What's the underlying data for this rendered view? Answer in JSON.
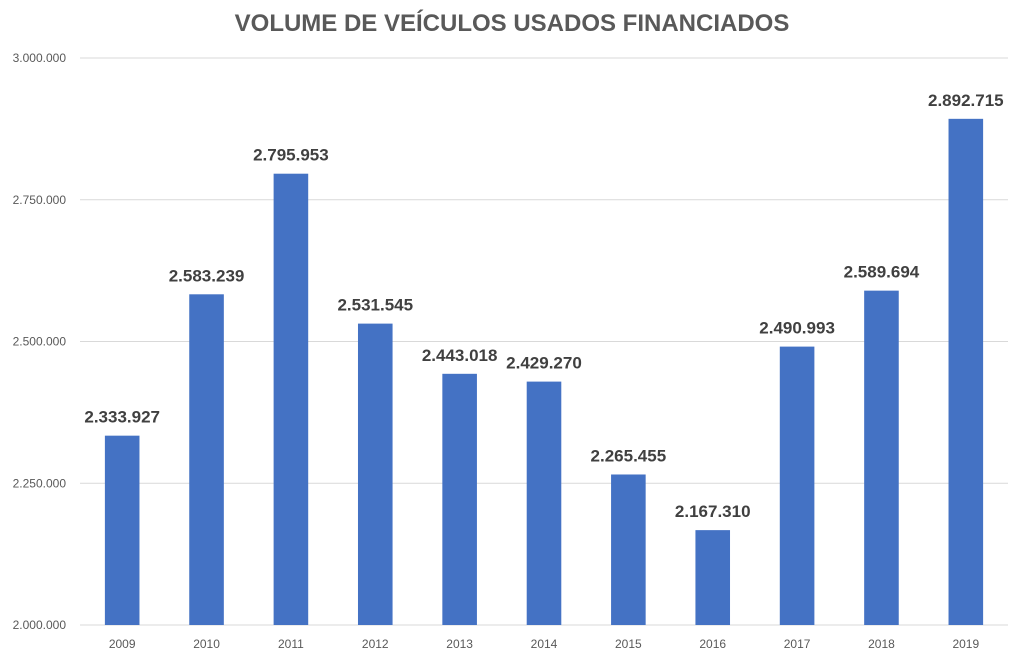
{
  "chart_data": {
    "type": "bar",
    "title": "VOLUME DE VEÍCULOS USADOS FINANCIADOS",
    "xlabel": "",
    "ylabel": "",
    "categories": [
      "2009",
      "2010",
      "2011",
      "2012",
      "2013",
      "2014",
      "2015",
      "2016",
      "2017",
      "2018",
      "2019"
    ],
    "values": [
      2333927,
      2583239,
      2795953,
      2531545,
      2443018,
      2429270,
      2265455,
      2167310,
      2490993,
      2589694,
      2892715
    ],
    "data_labels": [
      "2.333.927",
      "2.583.239",
      "2.795.953",
      "2.531.545",
      "2.443.018",
      "2.429.270",
      "2.265.455",
      "2.167.310",
      "2.490.993",
      "2.589.694",
      "2.892.715"
    ],
    "ylim": [
      2000000,
      3000000
    ],
    "yticks": [
      2000000,
      2250000,
      2500000,
      2750000,
      3000000
    ],
    "ytick_labels": [
      "2.000.000",
      "2.250.000",
      "2.500.000",
      "2.750.000",
      "3.000.000"
    ],
    "grid": true,
    "legend": "none",
    "bar_color": "#4472c4"
  }
}
